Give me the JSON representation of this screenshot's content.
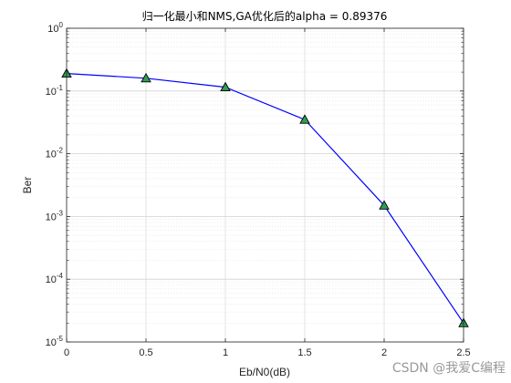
{
  "chart_data": {
    "type": "line",
    "title": "归一化最小和NMS,GA优化后的alpha = 0.89376",
    "xlabel": "Eb/N0(dB)",
    "ylabel": "Ber",
    "xlim": [
      0,
      2.5
    ],
    "ylim": [
      1e-05,
      1
    ],
    "yscale": "log",
    "grid": true,
    "x_ticks": [
      "0",
      "0.5",
      "1",
      "1.5",
      "2",
      "2.5"
    ],
    "y_ticks": [
      {
        "base": "10",
        "exp": "0"
      },
      {
        "base": "10",
        "exp": "-1"
      },
      {
        "base": "10",
        "exp": "-2"
      },
      {
        "base": "10",
        "exp": "-3"
      },
      {
        "base": "10",
        "exp": "-4"
      },
      {
        "base": "10",
        "exp": "-5"
      }
    ],
    "series": [
      {
        "x": [
          0,
          0.5,
          1,
          1.5,
          2,
          2.5
        ],
        "y": [
          0.19,
          0.16,
          0.115,
          0.035,
          0.0015,
          2e-05
        ],
        "line_color": "#0000ff",
        "marker": "triangle",
        "marker_fill": "#2e9e4f",
        "marker_edge": "#000000"
      }
    ]
  },
  "watermark": "CSDN @我爱C编程"
}
